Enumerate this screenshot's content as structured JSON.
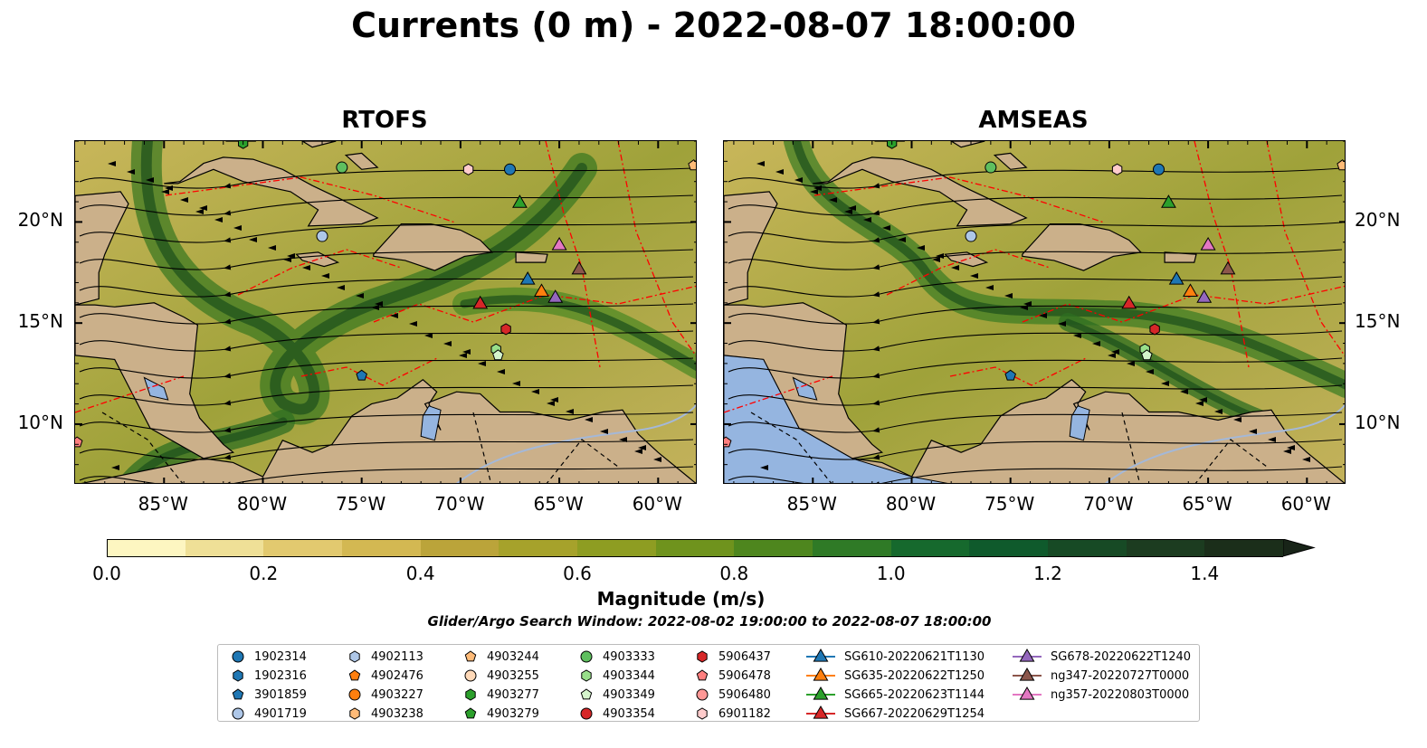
{
  "title": "Currents (0 m) - 2022-08-07 18:00:00",
  "panels": [
    {
      "title": "RTOFS"
    },
    {
      "title": "AMSEAS"
    }
  ],
  "axes": {
    "lon_ticks": [
      "85°W",
      "80°W",
      "75°W",
      "70°W",
      "65°W",
      "60°W"
    ],
    "lat_ticks": [
      "20°N",
      "15°N",
      "10°N"
    ]
  },
  "colorbar": {
    "label": "Magnitude (m/s)",
    "ticks": [
      "0.0",
      "0.2",
      "0.4",
      "0.6",
      "0.8",
      "1.0",
      "1.2",
      "1.4"
    ],
    "range": [
      0,
      1.5
    ],
    "extend": "max",
    "colors": [
      "#fdf6c1",
      "#efe097",
      "#e2c96f",
      "#d3b852",
      "#bba43a",
      "#a6a22b",
      "#8e9d22",
      "#6f931d",
      "#4e861e",
      "#2f7a26",
      "#16692d",
      "#0f5a2c",
      "#174a25",
      "#1c3c20",
      "#1b2e1a",
      "#182418"
    ]
  },
  "search_window": "Glider/Argo Search Window: 2022-08-02 19:00:00 to 2022-08-07 18:00:00",
  "legend": {
    "entries": [
      {
        "label": "1902314",
        "marker": "circle",
        "color": "#1f77b4"
      },
      {
        "label": "1902316",
        "marker": "hexagon",
        "color": "#1f77b4"
      },
      {
        "label": "3901859",
        "marker": "pentagon",
        "color": "#1f77b4"
      },
      {
        "label": "4901719",
        "marker": "circle",
        "color": "#aec7e8"
      },
      {
        "label": "4902113",
        "marker": "hexagon",
        "color": "#aec7e8"
      },
      {
        "label": "4902476",
        "marker": "pentagon",
        "color": "#ff7f0e"
      },
      {
        "label": "4903227",
        "marker": "circle",
        "color": "#ff7f0e"
      },
      {
        "label": "4903238",
        "marker": "hexagon",
        "color": "#ffbb78"
      },
      {
        "label": "4903244",
        "marker": "pentagon",
        "color": "#ffbb78"
      },
      {
        "label": "4903255",
        "marker": "circle",
        "color": "#ffd9b8"
      },
      {
        "label": "4903277",
        "marker": "hexagon",
        "color": "#2ca02c"
      },
      {
        "label": "4903279",
        "marker": "pentagon",
        "color": "#2ca02c"
      },
      {
        "label": "4903333",
        "marker": "circle",
        "color": "#5fbf5f"
      },
      {
        "label": "4903344",
        "marker": "hexagon",
        "color": "#98df8a"
      },
      {
        "label": "4903349",
        "marker": "pentagon",
        "color": "#d5f5cc"
      },
      {
        "label": "4903354",
        "marker": "circle",
        "color": "#d62728"
      },
      {
        "label": "5906437",
        "marker": "hexagon",
        "color": "#d62728"
      },
      {
        "label": "5906478",
        "marker": "pentagon",
        "color": "#ff7f7f"
      },
      {
        "label": "5906480",
        "marker": "circle",
        "color": "#ff9896"
      },
      {
        "label": "6901182",
        "marker": "hexagon",
        "color": "#ffcccc"
      },
      {
        "label": "SG610-20220621T1130",
        "marker": "triangle",
        "color": "#1f77b4"
      },
      {
        "label": "SG635-20220622T1250",
        "marker": "triangle",
        "color": "#ff7f0e"
      },
      {
        "label": "SG665-20220623T1144",
        "marker": "triangle",
        "color": "#2ca02c"
      },
      {
        "label": "SG667-20220629T1254",
        "marker": "triangle",
        "color": "#d62728"
      },
      {
        "label": "SG678-20220622T1240",
        "marker": "triangle",
        "color": "#9467bd"
      },
      {
        "label": "ng347-20220727T0000",
        "marker": "triangle",
        "color": "#8c564b"
      },
      {
        "label": "ng357-20220803T0000",
        "marker": "triangle",
        "color": "#e377c2"
      }
    ]
  },
  "colors": {
    "land": "#cbb08a",
    "water": "#95b5e0",
    "eez_lines": "#ff0000",
    "streamlines": "#000000"
  },
  "chart_data": {
    "type": "map",
    "extent": {
      "lon": [
        -89.5,
        -58.0
      ],
      "lat": [
        7.0,
        24.0
      ]
    },
    "variable": "surface current magnitude (m/s)",
    "observations": [
      {
        "id": "1902314",
        "lon": -67.5,
        "lat": 22.6
      },
      {
        "id": "4901719",
        "lon": -77.0,
        "lat": 19.3
      },
      {
        "id": "4903333",
        "lon": -76.0,
        "lat": 22.7
      },
      {
        "id": "4903277",
        "lon": -81.0,
        "lat": 23.9
      },
      {
        "id": "6901182",
        "lon": -69.6,
        "lat": 22.6
      },
      {
        "id": "3901859",
        "lon": -75.0,
        "lat": 12.4
      },
      {
        "id": "4903344",
        "lon": -68.2,
        "lat": 13.7
      },
      {
        "id": "4903349",
        "lon": -68.1,
        "lat": 13.4
      },
      {
        "id": "5906437",
        "lon": -67.7,
        "lat": 14.7
      },
      {
        "id": "5906478",
        "lon": -89.4,
        "lat": 9.1
      },
      {
        "id": "4903244",
        "lon": -58.2,
        "lat": 22.8
      },
      {
        "id": "SG610-20220621T1130",
        "lon": -66.6,
        "lat": 17.2
      },
      {
        "id": "SG635-20220622T1250",
        "lon": -65.9,
        "lat": 16.6
      },
      {
        "id": "SG665-20220623T1144",
        "lon": -67.0,
        "lat": 21.0
      },
      {
        "id": "SG667-20220629T1254",
        "lon": -69.0,
        "lat": 16.0
      },
      {
        "id": "SG678-20220622T1240",
        "lon": -65.2,
        "lat": 16.3
      },
      {
        "id": "ng347-20220727T0000",
        "lon": -64.0,
        "lat": 17.7
      },
      {
        "id": "ng357-20220803T0000",
        "lon": -65.0,
        "lat": 18.9
      }
    ]
  }
}
